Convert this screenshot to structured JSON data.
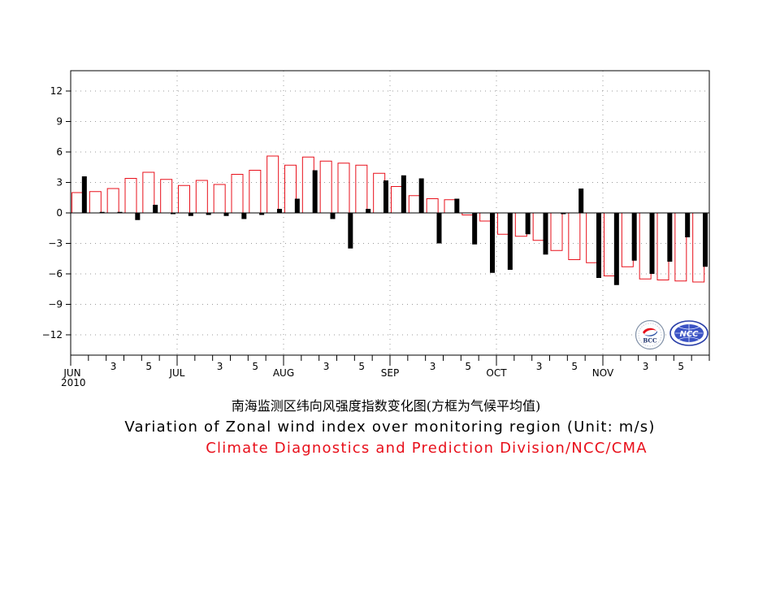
{
  "chart_data": {
    "type": "bar",
    "ylim": [
      -14,
      14
    ],
    "yticks": [
      12,
      9,
      6,
      3,
      0,
      -3,
      -6,
      -9,
      -12
    ],
    "ytick_labels": [
      "12",
      "9",
      "6",
      "3",
      "0",
      "−3",
      "−6",
      "−9",
      "−12"
    ],
    "xtick_labels": [
      {
        "pentad": 1,
        "month": "JUN",
        "year": "2010"
      },
      {
        "pentad": 3,
        "day": "3"
      },
      {
        "pentad": 5,
        "day": "5"
      },
      {
        "pentad": 7,
        "month": "JUL"
      },
      {
        "pentad": 9,
        "day": "3"
      },
      {
        "pentad": 11,
        "day": "5"
      },
      {
        "pentad": 13,
        "month": "AUG"
      },
      {
        "pentad": 15,
        "day": "3"
      },
      {
        "pentad": 17,
        "day": "5"
      },
      {
        "pentad": 19,
        "month": "SEP"
      },
      {
        "pentad": 21,
        "day": "3"
      },
      {
        "pentad": 23,
        "day": "5"
      },
      {
        "pentad": 25,
        "month": "OCT"
      },
      {
        "pentad": 27,
        "day": "3"
      },
      {
        "pentad": 29,
        "day": "5"
      },
      {
        "pentad": 31,
        "month": "NOV"
      },
      {
        "pentad": 33,
        "day": "3"
      },
      {
        "pentad": 35,
        "day": "5"
      }
    ],
    "grid": true,
    "series": [
      {
        "style": "outline",
        "color": "#e8101b",
        "values": [
          2.0,
          2.1,
          2.4,
          3.4,
          4.0,
          3.3,
          2.7,
          3.2,
          2.8,
          3.8,
          4.2,
          5.6,
          4.7,
          5.5,
          5.1,
          4.9,
          4.7,
          3.9,
          2.6,
          1.7,
          1.4,
          1.3,
          -0.2,
          -0.8,
          -2.1,
          -2.3,
          -2.7,
          -3.7,
          -4.6,
          -4.9,
          -6.2,
          -5.3,
          -6.5,
          -6.6,
          -6.7,
          -6.8
        ]
      },
      {
        "style": "solid",
        "color": "#000000",
        "values": [
          3.6,
          0.1,
          0.1,
          -0.7,
          0.8,
          0.0,
          -0.3,
          -0.2,
          -0.3,
          -0.6,
          -0.2,
          0.4,
          1.4,
          4.2,
          -0.6,
          -3.5,
          0.4,
          3.2,
          3.7,
          3.4,
          -3.0,
          1.4,
          -3.1,
          -5.9,
          -5.6,
          -2.1,
          -4.1,
          0.0,
          2.4,
          -6.4,
          -7.1,
          -4.7,
          -6.0,
          -4.8,
          -2.4,
          -5.3
        ]
      }
    ]
  },
  "titles": {
    "chinese": "南海监测区纬向风强度指数变化图(方框为气候平均值)",
    "english": "Variation of Zonal wind index over monitoring region    (Unit: m/s)",
    "credit": "Climate Diagnostics and Prediction Division/NCC/CMA"
  },
  "logos": {
    "left": "BCC",
    "right": "NCC"
  },
  "colors": {
    "climatology": "#e8101b",
    "observed": "#000000",
    "credit": "#e8101b"
  }
}
